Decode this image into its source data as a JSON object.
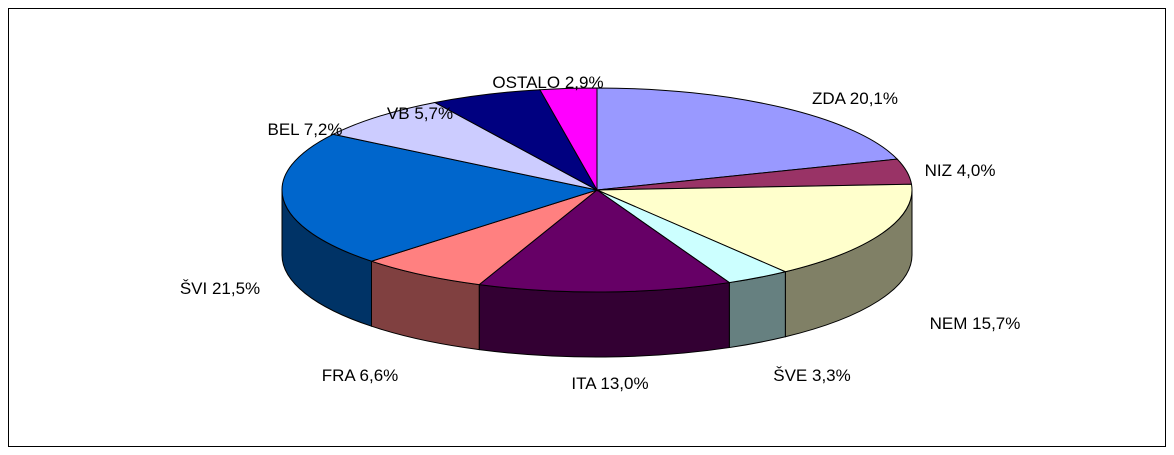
{
  "chart_data": {
    "type": "pie3d",
    "categories": [
      "ZDA",
      "NIZ",
      "NEM",
      "ŠVE",
      "ITA",
      "FRA",
      "ŠVI",
      "BEL",
      "VB",
      "OSTALO"
    ],
    "values": [
      20.1,
      4.0,
      15.7,
      3.3,
      13.0,
      6.6,
      21.5,
      7.2,
      5.7,
      2.9
    ],
    "value_labels": [
      "20,1%",
      "4,0%",
      "15,7%",
      "3,3%",
      "13,0%",
      "6,6%",
      "21,5%",
      "7,2%",
      "5,7%",
      "2,9%"
    ],
    "colors": [
      "#9999ff",
      "#993366",
      "#ffffcc",
      "#ccffff",
      "#660066",
      "#ff8080",
      "#0066cc",
      "#ccccff",
      "#000080",
      "#ff00ff"
    ]
  }
}
